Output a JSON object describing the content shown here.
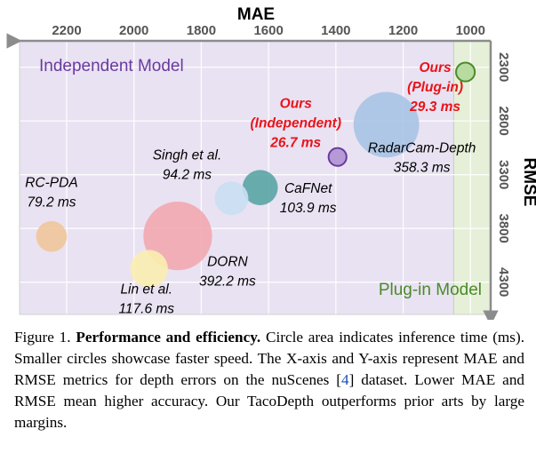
{
  "chart_data": {
    "type": "scatter",
    "subtype": "bubble",
    "xlabel": "MAE",
    "ylabel": "RMSE",
    "x_ticks": [
      2200,
      2000,
      1800,
      1600,
      1400,
      1200,
      1000
    ],
    "y_ticks": [
      2300,
      2800,
      3300,
      3800,
      4300
    ],
    "x_reversed": true,
    "y_reversed": true,
    "xlim": [
      2340,
      940
    ],
    "ylim": [
      2055,
      4600
    ],
    "grid": true,
    "regions": [
      {
        "label": "Independent Model",
        "color": "#e9e2f2",
        "label_color": "#6a3aa0",
        "x_range": [
          2340,
          1050
        ]
      },
      {
        "label": "Plug-in Model",
        "color": "#e6f0d8",
        "label_color": "#4a8a2a",
        "x_range": [
          1050,
          940
        ]
      }
    ],
    "points": [
      {
        "name": "RC-PDA",
        "time_label": "79.2 ms",
        "mae": 2245,
        "rmse": 3875,
        "time": 79.2,
        "color": "#f0c79a",
        "label_color": "#000000"
      },
      {
        "name": "Lin et al.",
        "time_label": "117.6 ms",
        "mae": 1955,
        "rmse": 4175,
        "time": 117.6,
        "color": "#fbeeb0",
        "label_color": "#000000"
      },
      {
        "name": "DORN",
        "time_label": "392.2 ms",
        "mae": 1870,
        "rmse": 3870,
        "time": 392.2,
        "color": "#f2a8b0",
        "label_color": "#000000"
      },
      {
        "name": "Singh et al.",
        "time_label": "94.2 ms",
        "mae": 1710,
        "rmse": 3520,
        "time": 94.2,
        "color": "#cadff2",
        "label_color": "#000000"
      },
      {
        "name": "CaFNet",
        "time_label": "103.9 ms",
        "mae": 1625,
        "rmse": 3420,
        "time": 103.9,
        "color": "#5aa5a5",
        "label_color": "#000000"
      },
      {
        "name": "RadarCam-Depth",
        "time_label": "358.3 ms",
        "mae": 1250,
        "rmse": 2835,
        "time": 358.3,
        "color": "#a9c4e4",
        "label_color": "#000000"
      },
      {
        "name": "Ours\n(Independent)",
        "time_label": "26.7 ms",
        "mae": 1395,
        "rmse": 3135,
        "time": 26.7,
        "color": "#b69ad6",
        "stroke": "#6a3aa0",
        "label_color": "#e8141a"
      },
      {
        "name": "Ours\n(Plug-in)",
        "time_label": "29.3 ms",
        "mae": 1015,
        "rmse": 2345,
        "time": 29.3,
        "color": "#b8dba0",
        "stroke": "#4a8a2a",
        "label_color": "#e8141a"
      }
    ]
  },
  "caption": {
    "figure_label": "Figure 1.",
    "title": "Performance and efficiency.",
    "text_1": "Circle area indicates inference time (ms). Smaller circles showcase faster speed. The X-axis and Y-axis represent MAE and RMSE metrics for depth errors on the nuScenes [",
    "ref": "4",
    "text_2": "] dataset.  Lower MAE and RMSE mean higher accuracy. Our TacoDepth outperforms prior arts by large margins."
  }
}
